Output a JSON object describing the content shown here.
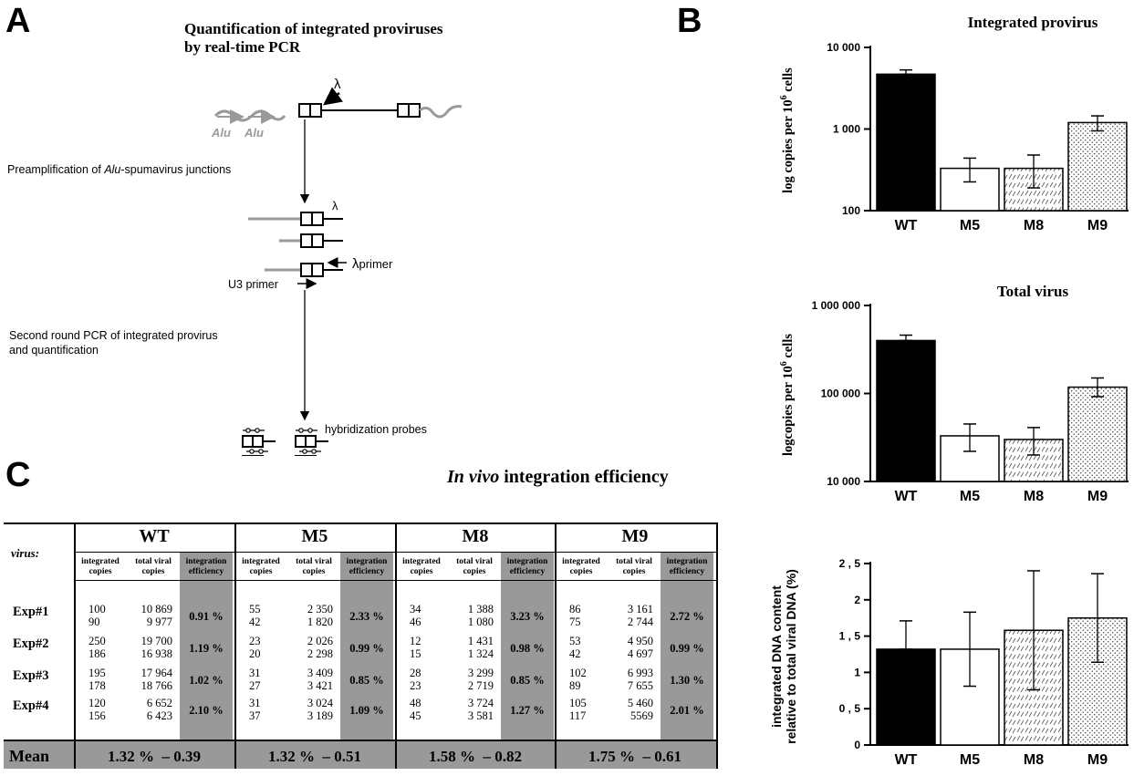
{
  "panelA": {
    "letter": "A",
    "title_line1": "Quantification of integrated proviruses",
    "title_line2": "by real-time PCR",
    "lambda": "λ",
    "alu1": "Alu",
    "alu2": "Alu",
    "step1_pre": "Preamplification of ",
    "step1_italic": "Alu",
    "step1_post": "-spumavirus junctions",
    "lambda_primer": "λ",
    "primer_sub": "primer",
    "u3_primer": "U3 primer",
    "step2_line1": "Second round PCR of integrated provirus",
    "step2_line2": "and quantification",
    "probes": "hybridization probes"
  },
  "panelB": {
    "letter": "B"
  },
  "panelC": {
    "letter": "C",
    "title_italic": "In vivo",
    "title_rest": " integration efficiency",
    "virus_label": "virus:",
    "groups": [
      "WT",
      "M5",
      "M8",
      "M9"
    ],
    "sub_headers": {
      "integrated_1": "integrated",
      "integrated_2": "copies",
      "total_1": "total viral",
      "total_2": "copies",
      "eff_1": "integration",
      "eff_2": "efficiency"
    },
    "experiments": [
      "Exp#1",
      "Exp#2",
      "Exp#3",
      "Exp#4"
    ],
    "rows": [
      {
        "WT": {
          "int": "100\n90",
          "tot": "10 869\n9 977",
          "eff": "0.91 %"
        },
        "M5": {
          "int": "55\n42",
          "tot": "2 350\n1 820",
          "eff": "2.33 %"
        },
        "M8": {
          "int": "34\n46",
          "tot": "1 388\n1 080",
          "eff": "3.23 %"
        },
        "M9": {
          "int": "86\n75",
          "tot": "3 161\n2 744",
          "eff": "2.72 %"
        }
      },
      {
        "WT": {
          "int": "250\n186",
          "tot": "19 700\n16 938",
          "eff": "1.19 %"
        },
        "M5": {
          "int": "23\n20",
          "tot": "2 026\n2 298",
          "eff": "0.99 %"
        },
        "M8": {
          "int": "12\n15",
          "tot": "1 431\n1 324",
          "eff": "0.98 %"
        },
        "M9": {
          "int": "53\n42",
          "tot": "4 950\n4 697",
          "eff": "0.99 %"
        }
      },
      {
        "WT": {
          "int": "195\n178",
          "tot": "17 964\n18 766",
          "eff": "1.02 %"
        },
        "M5": {
          "int": "31\n27",
          "tot": "3 409\n3 421",
          "eff": "0.85 %"
        },
        "M8": {
          "int": "28\n23",
          "tot": "3 299\n2 719",
          "eff": "0.85 %"
        },
        "M9": {
          "int": "102\n89",
          "tot": "6 993\n7 655",
          "eff": "1.30 %"
        }
      },
      {
        "WT": {
          "int": "120\n156",
          "tot": "6 652\n6 423",
          "eff": "2.10 %"
        },
        "M5": {
          "int": "31\n37",
          "tot": "3 024\n3 189",
          "eff": "1.09 %"
        },
        "M8": {
          "int": "48\n45",
          "tot": "3 724\n3 581",
          "eff": "1.27 %"
        },
        "M9": {
          "int": "105\n117",
          "tot": "5 460\n5569",
          "eff": "2.01 %"
        }
      }
    ],
    "mean_label": "Mean",
    "means": [
      "1.32 %  – 0.39",
      "1.32 %  – 0.51",
      "1.58 %  – 0.82",
      "1.75 %  – 0.61"
    ],
    "colors": {
      "shade": "#999999"
    }
  },
  "chart_data": [
    {
      "type": "bar",
      "title": "Integrated provirus",
      "ylabel": "log copies per 10",
      "ylabel_sup": "6",
      "ylabel_post": " cells",
      "categories": [
        "WT",
        "M5",
        "M8",
        "M9"
      ],
      "values": [
        4700,
        330,
        330,
        1200
      ],
      "err_low": [
        4700,
        225,
        190,
        950
      ],
      "err_high": [
        5300,
        440,
        480,
        1450
      ],
      "yscale": "log",
      "ylim": [
        100,
        10000
      ],
      "yticks": [
        100,
        1000,
        10000
      ],
      "yticklabels": [
        "100",
        "1 000",
        "10 000"
      ],
      "patterns": [
        "solid",
        "white",
        "cross",
        "dots"
      ]
    },
    {
      "type": "bar",
      "title": "Total virus",
      "ylabel": "logcopies per 10",
      "ylabel_sup": "6",
      "ylabel_post": " cells",
      "categories": [
        "WT",
        "M5",
        "M8",
        "M9"
      ],
      "values": [
        400000,
        33000,
        30000,
        118000
      ],
      "err_low": [
        400000,
        22000,
        20000,
        92000
      ],
      "err_high": [
        460000,
        45000,
        41000,
        150000
      ],
      "yscale": "log",
      "ylim": [
        10000,
        1000000
      ],
      "yticks": [
        10000,
        100000,
        1000000
      ],
      "yticklabels": [
        "10 000",
        "100 000",
        "1 000 000"
      ],
      "patterns": [
        "solid",
        "white",
        "cross",
        "dots"
      ]
    },
    {
      "type": "bar",
      "title": "",
      "ylabel": "integrated DNA content",
      "ylabel2": "relative to total viral DNA (%)",
      "categories": [
        "WT",
        "M5",
        "M8",
        "M9"
      ],
      "values": [
        1.32,
        1.32,
        1.58,
        1.75
      ],
      "err_low": [
        1.32,
        0.81,
        0.76,
        1.14
      ],
      "err_high": [
        1.71,
        1.83,
        2.4,
        2.36
      ],
      "yscale": "linear",
      "ylim": [
        0,
        2.5
      ],
      "yticks": [
        0,
        0.5,
        1,
        1.5,
        2,
        2.5
      ],
      "yticklabels": [
        "0",
        "0 , 5",
        "1",
        "1 , 5",
        "2",
        "2 , 5"
      ],
      "patterns": [
        "solid",
        "white",
        "cross",
        "dots"
      ]
    }
  ]
}
